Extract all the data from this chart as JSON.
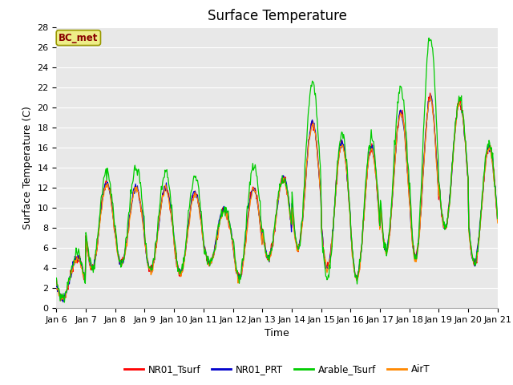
{
  "title": "Surface Temperature",
  "ylabel": "Surface Temperature (C)",
  "xlabel": "Time",
  "ylim": [
    0,
    28
  ],
  "yticks": [
    0,
    2,
    4,
    6,
    8,
    10,
    12,
    14,
    16,
    18,
    20,
    22,
    24,
    26,
    28
  ],
  "xtick_labels": [
    "Jan 6",
    "Jan 7",
    "Jan 8",
    "Jan 9",
    "Jan 10",
    "Jan 11",
    "Jan 12",
    "Jan 13",
    "Jan 14",
    "Jan 15",
    "Jan 16",
    "Jan 17",
    "Jan 18",
    "Jan 19",
    "Jan 20",
    "Jan 21"
  ],
  "series_colors": {
    "NR01_Tsurf": "#ff0000",
    "NR01_PRT": "#0000cc",
    "Arable_Tsurf": "#00cc00",
    "AirT": "#ff8800"
  },
  "legend_label": "BC_met",
  "legend_box_facecolor": "#eeee88",
  "legend_box_edgecolor": "#999900",
  "legend_text_color": "#880000",
  "plot_bg_color": "#e8e8e8",
  "fig_bg_color": "#ffffff",
  "grid_color": "#ffffff",
  "linewidth": 0.9,
  "title_fontsize": 12,
  "axis_label_fontsize": 9,
  "tick_fontsize": 8,
  "n_days": 15,
  "samples_per_day": 48,
  "day_peaks_base": [
    5.0,
    12.5,
    12.0,
    12.0,
    11.5,
    9.8,
    12.0,
    13.0,
    18.5,
    16.5,
    16.0,
    19.5,
    21.0,
    20.5,
    16.0
  ],
  "day_peaks_arable": [
    5.5,
    13.5,
    14.0,
    13.5,
    13.0,
    9.8,
    14.3,
    13.0,
    22.5,
    17.5,
    17.0,
    22.0,
    27.0,
    20.8,
    16.5
  ],
  "day_mins_base": [
    1.0,
    4.0,
    4.5,
    3.8,
    3.5,
    4.5,
    3.0,
    5.0,
    6.0,
    4.0,
    3.0,
    5.8,
    5.0,
    8.0,
    4.5
  ],
  "day_mins_arable": [
    1.0,
    4.0,
    4.5,
    3.8,
    3.5,
    4.5,
    3.0,
    5.0,
    5.8,
    3.0,
    3.0,
    5.8,
    5.0,
    8.0,
    4.5
  ]
}
